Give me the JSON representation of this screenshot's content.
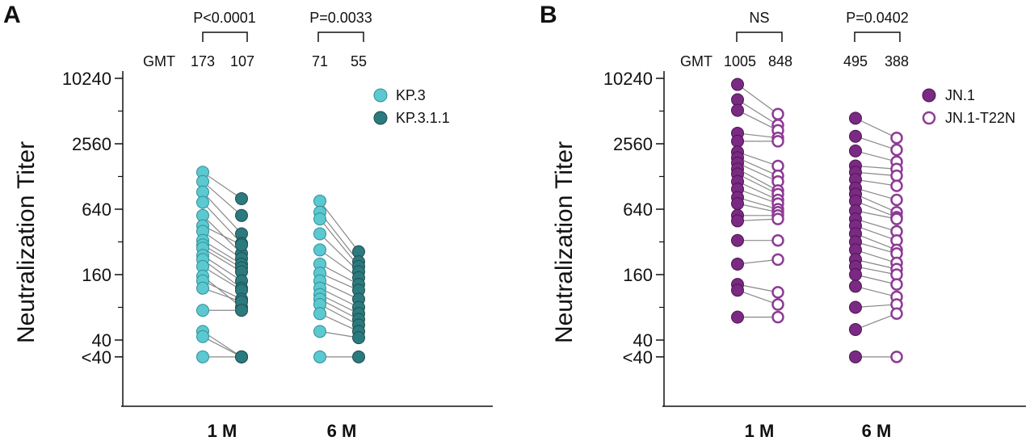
{
  "chart_data": [
    {
      "panel": "A",
      "type": "scatter",
      "ylabel": "Neutralization Titer",
      "yscale": "log2",
      "ylim": [
        20,
        10240
      ],
      "yticks": [
        {
          "value": 10240,
          "label": "10240"
        },
        {
          "value": 2560,
          "label": "2560"
        },
        {
          "value": 640,
          "label": "640"
        },
        {
          "value": 160,
          "label": "160"
        },
        {
          "value": 40,
          "label": "40"
        },
        {
          "value": 28,
          "label": "<40"
        }
      ],
      "categories": [
        "1 M",
        "6 M"
      ],
      "gmt_label": "GMT",
      "gmt_values": [
        "173",
        "107",
        "71",
        "55"
      ],
      "pvalues": [
        "P<0.0001",
        "P=0.0033"
      ],
      "series": [
        {
          "name": "KP.3",
          "color": "#5cc8d0",
          "edge": "#2f8f99",
          "filled": true
        },
        {
          "name": "KP.3.1.1",
          "color": "#2b7a7e",
          "edge": "#1f4f52",
          "filled": true
        }
      ],
      "groups": [
        {
          "category": "1 M",
          "pairs": [
            [
              1400,
              800
            ],
            [
              1150,
              560
            ],
            [
              920,
              380
            ],
            [
              740,
              310
            ],
            [
              560,
              250
            ],
            [
              450,
              300
            ],
            [
              400,
              225
            ],
            [
              330,
              200
            ],
            [
              300,
              185
            ],
            [
              280,
              170
            ],
            [
              240,
              140
            ],
            [
              220,
              120
            ],
            [
              190,
              115
            ],
            [
              155,
              80
            ],
            [
              140,
              95
            ],
            [
              120,
              90
            ],
            [
              75,
              75
            ],
            [
              48,
              28
            ],
            [
              43,
              28
            ],
            [
              28,
              28
            ]
          ]
        },
        {
          "category": "6 M",
          "pairs": [
            [
              760,
              260
            ],
            [
              600,
              210
            ],
            [
              520,
              190
            ],
            [
              380,
              170
            ],
            [
              270,
              150
            ],
            [
              200,
              130
            ],
            [
              165,
              115
            ],
            [
              140,
              95
            ],
            [
              120,
              80
            ],
            [
              105,
              70
            ],
            [
              95,
              62
            ],
            [
              85,
              55
            ],
            [
              70,
              48
            ],
            [
              48,
              42
            ],
            [
              28,
              28
            ]
          ]
        }
      ]
    },
    {
      "panel": "B",
      "type": "scatter",
      "ylabel": "Neutralization Titer",
      "yscale": "log2",
      "ylim": [
        20,
        10240
      ],
      "yticks": [
        {
          "value": 10240,
          "label": "10240"
        },
        {
          "value": 2560,
          "label": "2560"
        },
        {
          "value": 640,
          "label": "640"
        },
        {
          "value": 160,
          "label": "160"
        },
        {
          "value": 40,
          "label": "40"
        },
        {
          "value": 28,
          "label": "<40"
        }
      ],
      "categories": [
        "1 M",
        "6 M"
      ],
      "gmt_label": "GMT",
      "gmt_values": [
        "1005",
        "848",
        "495",
        "388"
      ],
      "pvalues": [
        "NS",
        "P=0.0402"
      ],
      "series": [
        {
          "name": "JN.1",
          "color": "#7a2a82",
          "edge": "#4d1552",
          "filled": true
        },
        {
          "name": "JN.1-T22N",
          "color": "#8e3a96",
          "edge": "#8e3a96",
          "filled": false
        }
      ],
      "groups": [
        {
          "category": "1 M",
          "pairs": [
            [
              9000,
              4800
            ],
            [
              6500,
              3800
            ],
            [
              5200,
              3400
            ],
            [
              3200,
              2900
            ],
            [
              2700,
              2700
            ],
            [
              2150,
              1600
            ],
            [
              1900,
              1300
            ],
            [
              1700,
              1150
            ],
            [
              1500,
              950
            ],
            [
              1350,
              880
            ],
            [
              1150,
              780
            ],
            [
              980,
              720
            ],
            [
              820,
              640
            ],
            [
              720,
              600
            ],
            [
              560,
              560
            ],
            [
              500,
              520
            ],
            [
              330,
              330
            ],
            [
              200,
              220
            ],
            [
              130,
              110
            ],
            [
              115,
              85
            ],
            [
              65,
              65
            ]
          ]
        },
        {
          "category": "6 M",
          "pairs": [
            [
              4400,
              2900
            ],
            [
              3000,
              2250
            ],
            [
              2200,
              1750
            ],
            [
              1600,
              1500
            ],
            [
              1400,
              1300
            ],
            [
              1200,
              1050
            ],
            [
              1000,
              780
            ],
            [
              880,
              600
            ],
            [
              760,
              540
            ],
            [
              620,
              520
            ],
            [
              520,
              400
            ],
            [
              450,
              330
            ],
            [
              380,
              270
            ],
            [
              320,
              250
            ],
            [
              270,
              205
            ],
            [
              220,
              180
            ],
            [
              190,
              160
            ],
            [
              160,
              130
            ],
            [
              125,
              100
            ],
            [
              80,
              85
            ],
            [
              50,
              70
            ],
            [
              28,
              28
            ]
          ]
        }
      ]
    }
  ]
}
